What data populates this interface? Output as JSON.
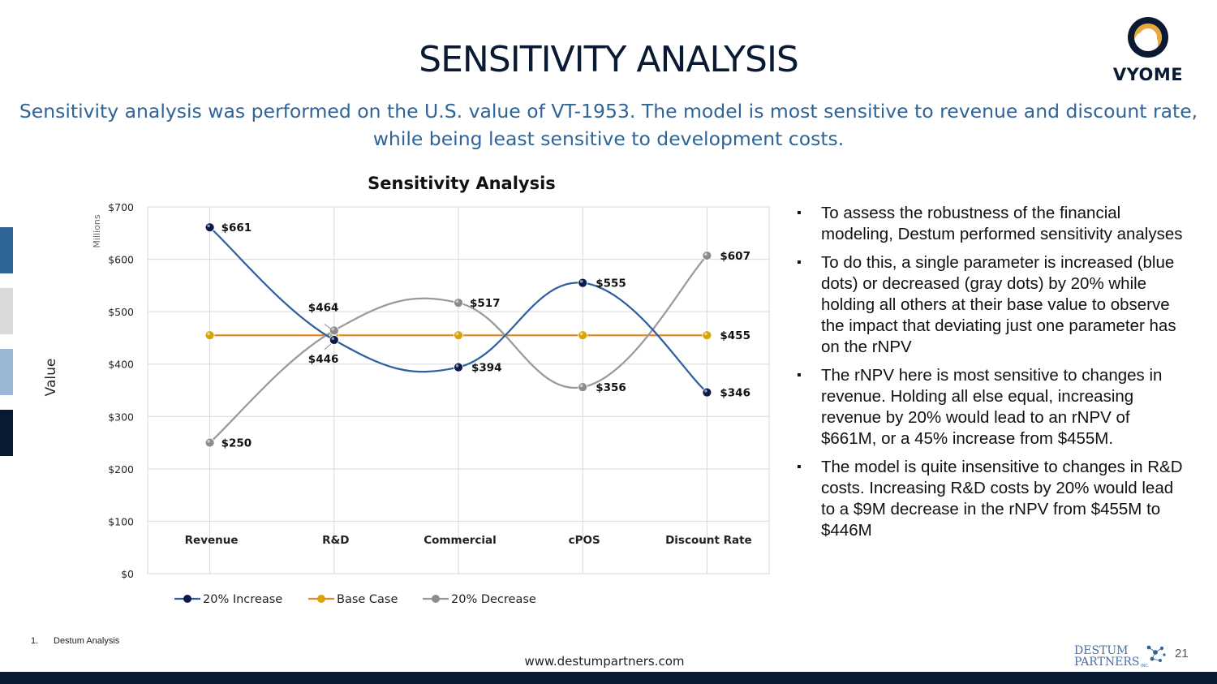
{
  "slide": {
    "title": "SENSITIVITY ANALYSIS",
    "subtitle": "Sensitivity analysis was performed on the U.S. value of VT-1953. The model is most sensitive to revenue and discount rate, while being least sensitive to development costs.",
    "logo_text": "VYOME",
    "footnote_number": "1.",
    "footnote_text": "Destum Analysis",
    "website": "www.destumpartners.com",
    "partner_logo_line1": "DESTUM",
    "partner_logo_line2": "PARTNERS",
    "partner_logo_suffix": "INC.",
    "page_number": "21",
    "side_bar_colors": [
      "#2f6499",
      "#d9d9d9",
      "#9ab8d6",
      "#0b1a33"
    ]
  },
  "bullets": [
    "To assess the robustness of the financial modeling, Destum performed sensitivity analyses",
    "To do this, a single parameter is increased (blue dots) or decreased (gray dots) by 20% while holding all others at their base value to observe the impact that deviating just one parameter has on the rNPV",
    "The rNPV here is most sensitive to changes in revenue. Holding all else equal, increasing revenue by 20% would lead to an rNPV of $661M, or a 45% increase from $455M.",
    "The model is quite insensitive to changes in R&D costs. Increasing R&D costs by 20% would lead to a $9M decrease in the rNPV from $455M to $446M"
  ],
  "chart_data": {
    "type": "line",
    "title": "Sensitivity Analysis",
    "ylabel": "Value",
    "yunit_label": "Millions",
    "categories": [
      "Revenue",
      "R&D",
      "Commercial",
      "cPOS",
      "Discount Rate"
    ],
    "ylim": [
      0,
      700
    ],
    "yticks": [
      0,
      100,
      200,
      300,
      400,
      500,
      600,
      700
    ],
    "ytick_labels": [
      "$0",
      "$100",
      "$200",
      "$300",
      "$400",
      "$500",
      "$600",
      "$700"
    ],
    "grid": true,
    "legend_position": "bottom",
    "series": [
      {
        "name": "20% Increase",
        "values": [
          661,
          446,
          394,
          555,
          346
        ],
        "labels": [
          "$661",
          "$446",
          "$394",
          "$555",
          "$346"
        ],
        "color": "#2f5fa0",
        "marker": "#0b1a4a"
      },
      {
        "name": "Base Case",
        "values": [
          455,
          455,
          455,
          455,
          455
        ],
        "labels": [
          "",
          "",
          "",
          "",
          "$455"
        ],
        "color": "#e08a2c",
        "marker": "#d9a400"
      },
      {
        "name": "20% Decrease",
        "values": [
          250,
          464,
          517,
          356,
          607
        ],
        "labels": [
          "$250",
          "$464",
          "$517",
          "$356",
          "$607"
        ],
        "color": "#9a9a9a",
        "marker": "#8c8c8c"
      }
    ]
  }
}
